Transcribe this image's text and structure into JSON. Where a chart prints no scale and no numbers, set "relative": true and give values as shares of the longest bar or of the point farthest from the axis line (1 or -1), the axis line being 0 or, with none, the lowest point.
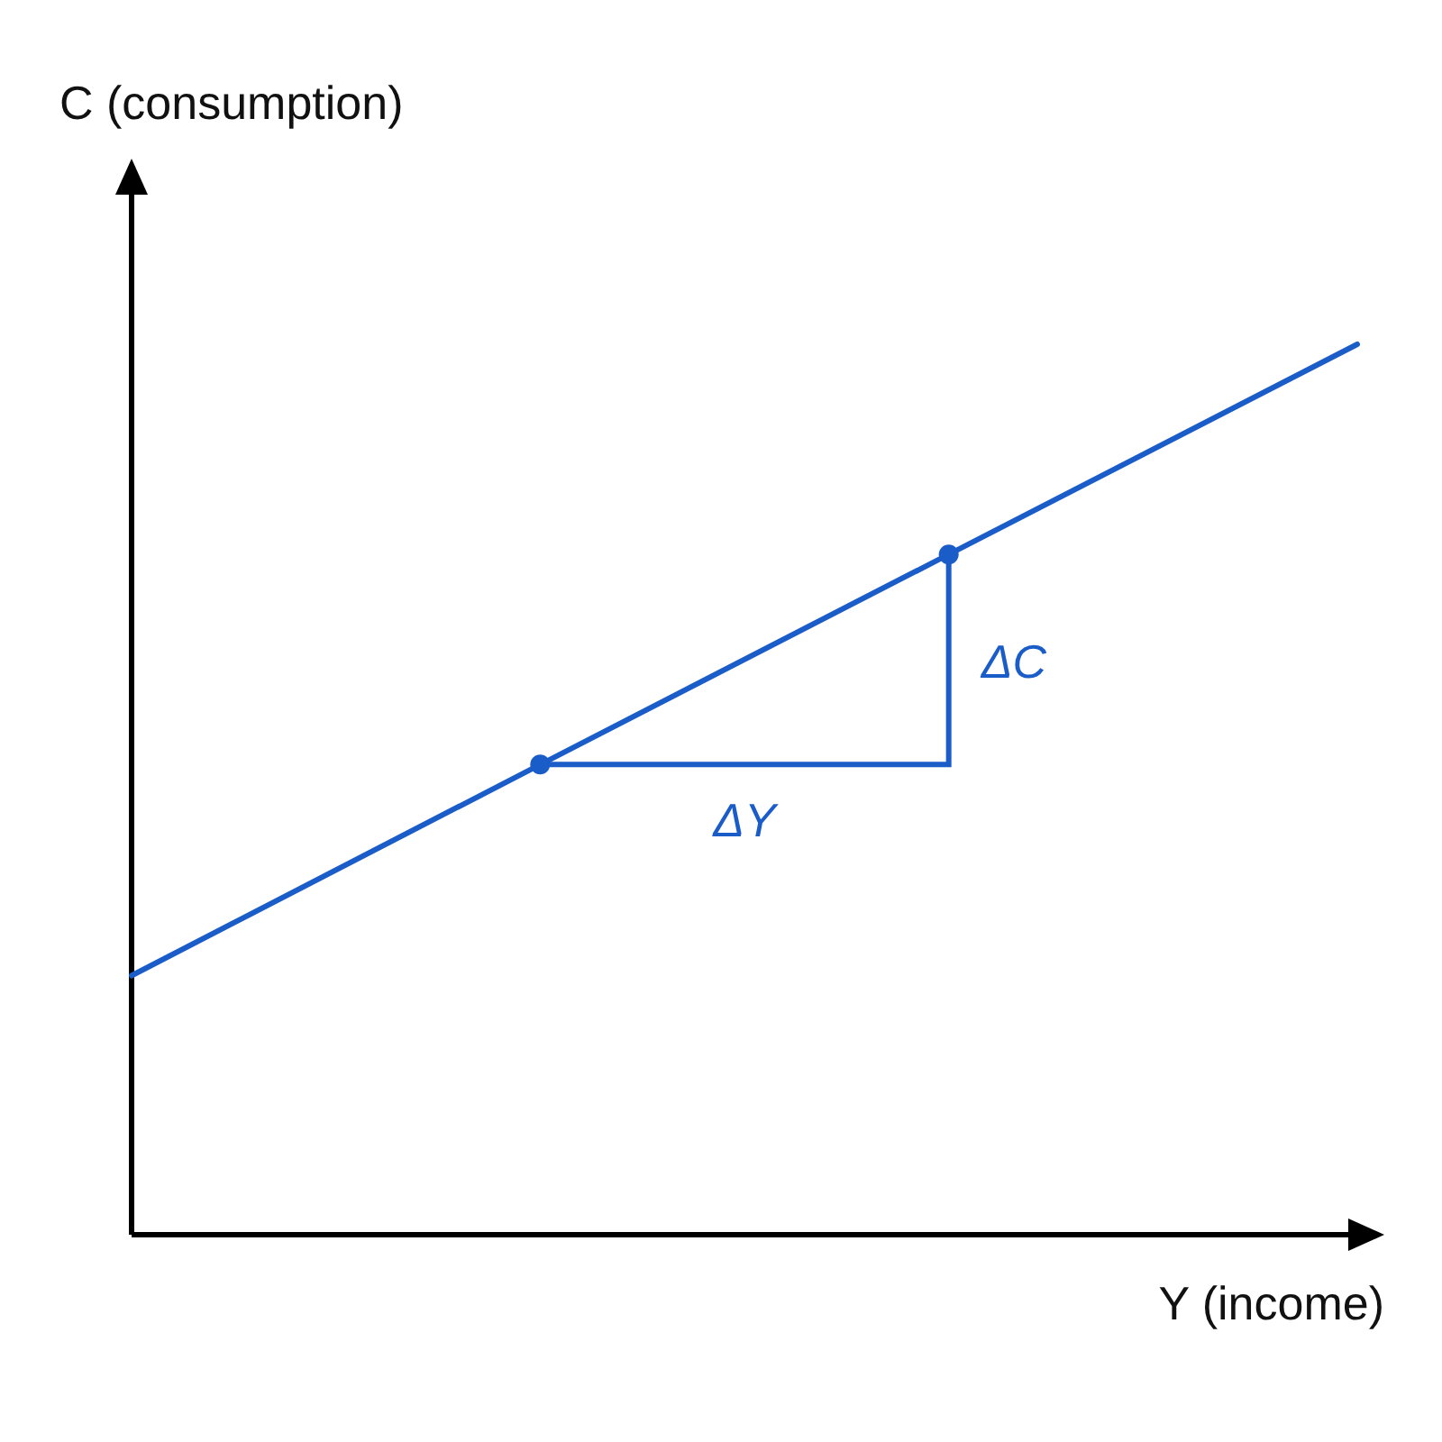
{
  "chart_data": {
    "type": "line",
    "relative": true,
    "xlabel": "Y (income)",
    "ylabel": "C (consumption)",
    "categories": [
      null,
      null,
      null,
      null
    ],
    "series": [
      {
        "color": "#1a5cc8",
        "values": [
          0.291,
          0.528,
          0.764,
          1
        ]
      }
    ],
    "annotations": [
      "ΔY",
      "ΔC"
    ]
  }
}
